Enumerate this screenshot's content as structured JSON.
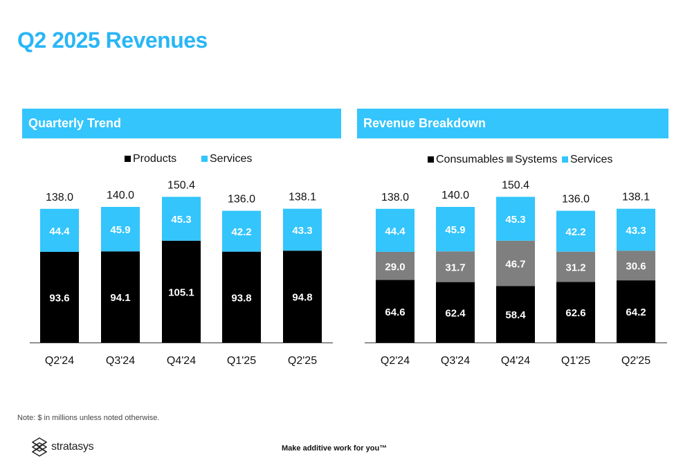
{
  "page": {
    "title": "Q2 2025 Revenues",
    "note": "Note: $ in millions unless noted otherwise.",
    "logo_text": "stratasys",
    "tagline": "Make additive work for you™"
  },
  "colors": {
    "accent": "#33c5fc",
    "title": "#29b6f6",
    "products": "#000000",
    "consumables": "#000000",
    "systems": "#7f7f7f",
    "services": "#33c5fc"
  },
  "chart_data": [
    {
      "type": "bar",
      "stacked": true,
      "title": "Quarterly Trend",
      "categories": [
        "Q2'24",
        "Q3'24",
        "Q4'24",
        "Q1'25",
        "Q2'25"
      ],
      "series": [
        {
          "name": "Products",
          "values": [
            93.6,
            94.1,
            105.1,
            93.8,
            94.8
          ],
          "labels": [
            "93.6",
            "94.1",
            "105.1",
            "93.8",
            "94.8"
          ],
          "color": "#000000"
        },
        {
          "name": "Services",
          "values": [
            44.4,
            45.9,
            45.3,
            42.2,
            43.3
          ],
          "labels": [
            "44.4",
            "45.9",
            "45.3",
            "42.2",
            "43.3"
          ],
          "color": "#33c5fc"
        }
      ],
      "totals": [
        "138.0",
        "140.0",
        "150.4",
        "136.0",
        "138.1"
      ],
      "legend": "top",
      "grid": false
    },
    {
      "type": "bar",
      "stacked": true,
      "title": "Revenue Breakdown",
      "categories": [
        "Q2'24",
        "Q3'24",
        "Q4'24",
        "Q1'25",
        "Q2'25"
      ],
      "series": [
        {
          "name": "Consumables",
          "values": [
            64.6,
            62.4,
            58.4,
            62.6,
            64.2
          ],
          "labels": [
            "64.6",
            "62.4",
            "58.4",
            "62.6",
            "64.2"
          ],
          "color": "#000000"
        },
        {
          "name": "Systems",
          "values": [
            29.0,
            31.7,
            46.7,
            31.2,
            30.6
          ],
          "labels": [
            "29.0",
            "31.7",
            "46.7",
            "31.2",
            "30.6"
          ],
          "color": "#7f7f7f"
        },
        {
          "name": "Services",
          "values": [
            44.4,
            45.9,
            45.3,
            42.2,
            43.3
          ],
          "labels": [
            "44.4",
            "45.9",
            "45.3",
            "42.2",
            "43.3"
          ],
          "color": "#33c5fc"
        }
      ],
      "totals": [
        "138.0",
        "140.0",
        "150.4",
        "136.0",
        "138.1"
      ],
      "legend": "top",
      "grid": false
    }
  ]
}
